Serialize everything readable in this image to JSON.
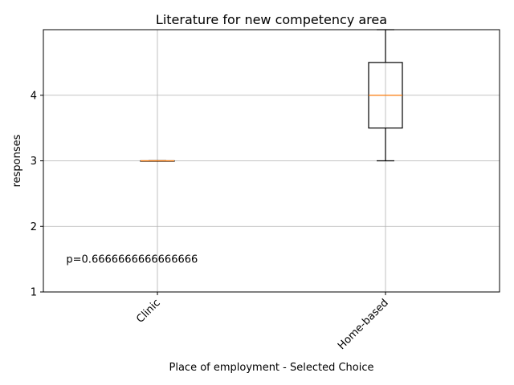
{
  "chart_data": {
    "type": "box",
    "title": "Literature for new competency area",
    "xlabel": "Place of employment - Selected Choice",
    "ylabel": "responses",
    "categories": [
      "Clinic",
      "Home-based"
    ],
    "boxes": [
      {
        "category": "Clinic",
        "whisker_low": 3,
        "q1": 3,
        "median": 3,
        "q3": 3,
        "whisker_high": 3
      },
      {
        "category": "Home-based",
        "whisker_low": 3,
        "q1": 3.5,
        "median": 4,
        "q3": 4.5,
        "whisker_high": 5
      }
    ],
    "yticks": [
      1,
      2,
      3,
      4
    ],
    "ylim": [
      1,
      5
    ],
    "grid": true,
    "annotation": {
      "text": "p=0.6666666666666666",
      "x": 0.6,
      "y": 1.5
    },
    "colors": {
      "box": "#000000",
      "median": "#ff7f0e",
      "grid": "#b0b0b0"
    }
  }
}
